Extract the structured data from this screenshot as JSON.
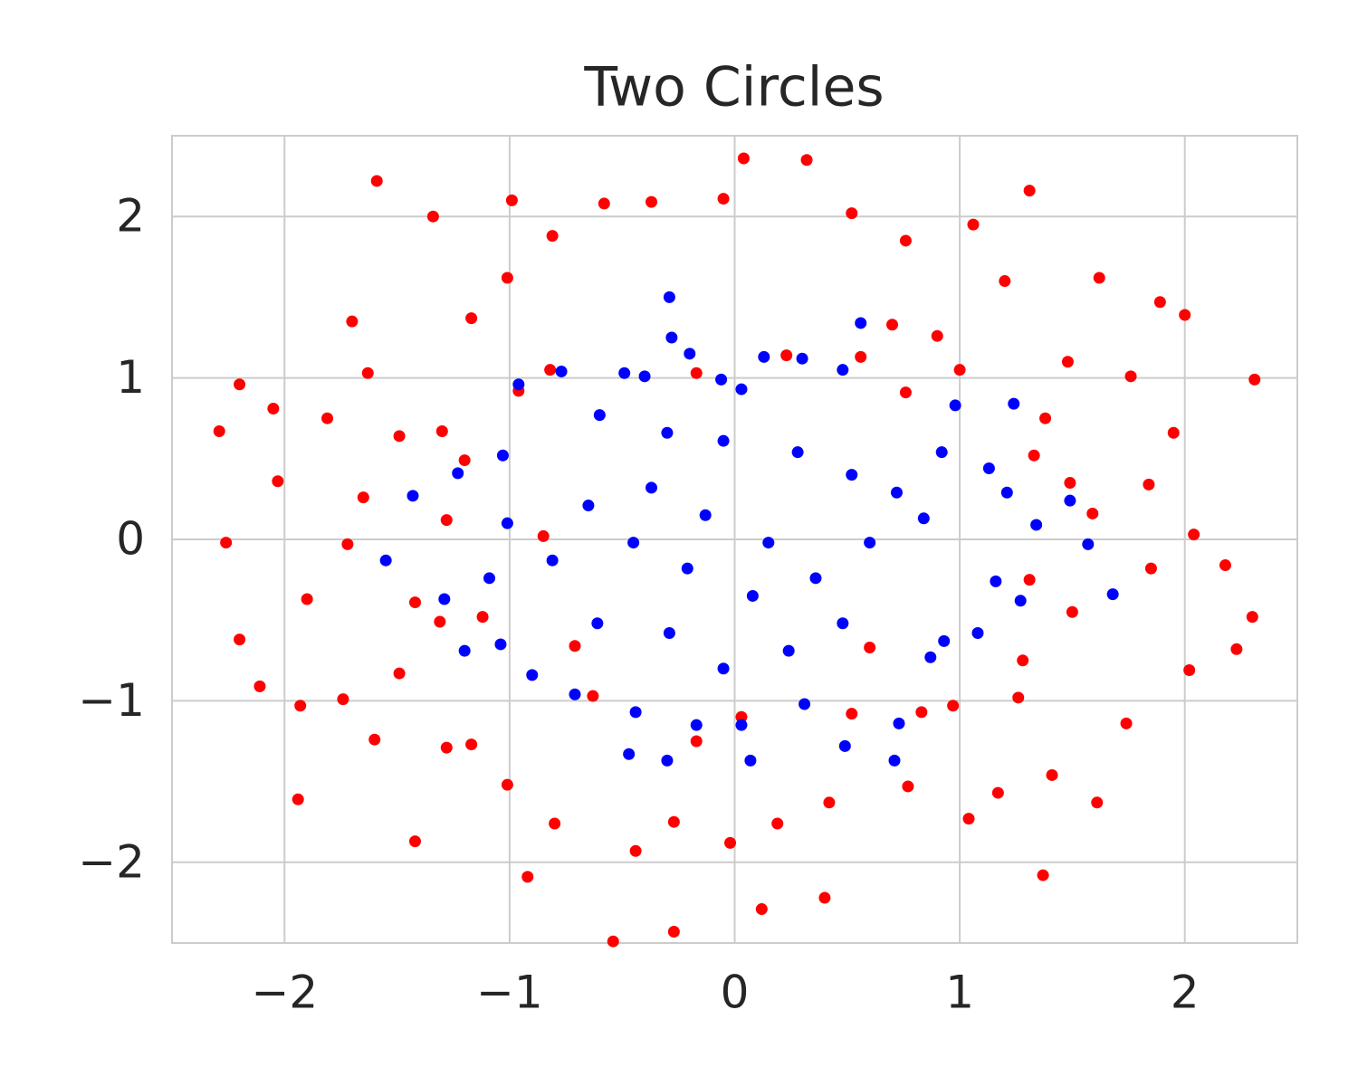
{
  "chart_data": {
    "type": "scatter",
    "title": "Two Circles",
    "xlim": [
      -2.5,
      2.5
    ],
    "ylim": [
      -2.5,
      2.5
    ],
    "xticks": [
      {
        "value": -2,
        "label": "−2"
      },
      {
        "value": -1,
        "label": "−1"
      },
      0,
      1,
      2
    ],
    "yticks": [
      {
        "value": -2,
        "label": "−2"
      },
      {
        "value": -1,
        "label": "−1"
      },
      0,
      1,
      2
    ],
    "grid": true,
    "series": [
      {
        "color": "#ff0000",
        "x": [
          -2.29,
          -2.26,
          -2.2,
          -2.2,
          -1.59,
          -1.34,
          -0.99,
          0.04,
          0.32,
          1.31,
          2.31,
          2.3,
          2.23,
          2.18,
          2.0,
          1.89,
          1.62,
          1.37,
          0.4,
          0.12,
          -0.27,
          -0.54,
          -0.92,
          -1.42,
          -1.94,
          -2.11,
          -2.05,
          -2.03,
          -1.81,
          -1.63,
          -1.7,
          -1.17,
          -1.01,
          -0.81,
          -0.58,
          -0.37,
          -0.05,
          0.52,
          0.76,
          1.06,
          1.2,
          1.48,
          1.76,
          1.95,
          1.84,
          2.04,
          1.85,
          2.02,
          1.74,
          1.61,
          1.41,
          1.17,
          1.04,
          0.77,
          0.42,
          0.19,
          -0.02,
          -0.27,
          -0.44,
          -0.8,
          -1.01,
          -1.28,
          -1.6,
          -1.74,
          -1.93,
          -1.9,
          -1.72,
          -1.65,
          -1.49,
          -1.3,
          -1.2,
          -1.28,
          -1.42,
          -1.49,
          -1.31,
          -1.12,
          -1.17,
          1.26,
          1.28,
          1.31,
          1.5,
          1.59,
          1.49,
          1.33,
          1.38,
          0.76,
          0.83,
          0.97,
          0.6,
          0.52,
          0.03,
          -0.17,
          -0.63,
          -0.71,
          -0.85,
          -0.82,
          -0.96,
          -0.17,
          0.23,
          0.56,
          0.7,
          0.9,
          1.0
        ],
        "y": [
          0.67,
          -0.02,
          0.96,
          -0.62,
          2.22,
          2.0,
          2.1,
          2.36,
          2.35,
          2.16,
          0.99,
          -0.48,
          -0.68,
          -0.16,
          1.39,
          1.47,
          1.62,
          -2.08,
          -2.22,
          -2.29,
          -2.43,
          -2.49,
          -2.09,
          -1.87,
          -1.61,
          -0.91,
          0.81,
          0.36,
          0.75,
          1.03,
          1.35,
          1.37,
          1.62,
          1.88,
          2.08,
          2.09,
          2.11,
          2.02,
          1.85,
          1.95,
          1.6,
          1.1,
          1.01,
          0.66,
          0.34,
          0.03,
          -0.18,
          -0.81,
          -1.14,
          -1.63,
          -1.46,
          -1.57,
          -1.73,
          -1.53,
          -1.63,
          -1.76,
          -1.88,
          -1.75,
          -1.93,
          -1.76,
          -1.52,
          -1.29,
          -1.24,
          -0.99,
          -1.03,
          -0.37,
          -0.03,
          0.26,
          0.64,
          0.67,
          0.49,
          0.12,
          -0.39,
          -0.83,
          -0.51,
          -0.48,
          -1.27,
          -0.98,
          -0.75,
          -0.25,
          -0.45,
          0.16,
          0.35,
          0.52,
          0.75,
          0.91,
          -1.07,
          -1.03,
          -0.67,
          -1.08,
          -1.1,
          -1.25,
          -0.97,
          -0.66,
          0.02,
          1.05,
          0.92,
          1.03,
          1.14,
          1.13,
          1.33,
          1.26,
          1.05
        ]
      },
      {
        "color": "#0000ff",
        "x": [
          -0.29,
          0.56,
          -0.28,
          -0.2,
          0.13,
          0.3,
          0.48,
          0.98,
          1.24,
          1.13,
          1.21,
          1.34,
          1.49,
          1.57,
          1.68,
          1.27,
          1.16,
          1.08,
          0.93,
          0.87,
          0.73,
          0.71,
          0.49,
          0.31,
          0.07,
          0.03,
          -0.17,
          -0.3,
          -0.47,
          -0.44,
          -0.71,
          -0.9,
          -1.04,
          -1.2,
          -1.29,
          -1.55,
          -1.43,
          -1.23,
          -1.03,
          -0.96,
          -0.77,
          -0.49,
          -0.4,
          -0.06,
          0.03,
          -0.6,
          -0.3,
          -0.05,
          0.28,
          0.52,
          0.72,
          0.84,
          0.6,
          0.36,
          0.08,
          -0.21,
          -0.45,
          -0.65,
          -0.81,
          -0.61,
          -0.29,
          -0.05,
          0.24,
          0.48,
          0.15,
          -0.13,
          -0.37,
          -1.01,
          -1.09,
          0.92
        ],
        "y": [
          1.5,
          1.34,
          1.25,
          1.15,
          1.13,
          1.12,
          1.05,
          0.83,
          0.84,
          0.44,
          0.29,
          0.09,
          0.24,
          -0.03,
          -0.34,
          -0.38,
          -0.26,
          -0.58,
          -0.63,
          -0.73,
          -1.14,
          -1.37,
          -1.28,
          -1.02,
          -1.37,
          -1.15,
          -1.15,
          -1.37,
          -1.33,
          -1.07,
          -0.96,
          -0.84,
          -0.65,
          -0.69,
          -0.37,
          -0.13,
          0.27,
          0.41,
          0.52,
          0.96,
          1.04,
          1.03,
          1.01,
          0.99,
          0.93,
          0.77,
          0.66,
          0.61,
          0.54,
          0.4,
          0.29,
          0.13,
          -0.02,
          -0.24,
          -0.35,
          -0.18,
          -0.02,
          0.21,
          -0.13,
          -0.52,
          -0.58,
          -0.8,
          -0.69,
          -0.52,
          -0.02,
          0.15,
          0.32,
          0.1,
          -0.24,
          0.54
        ]
      }
    ]
  }
}
